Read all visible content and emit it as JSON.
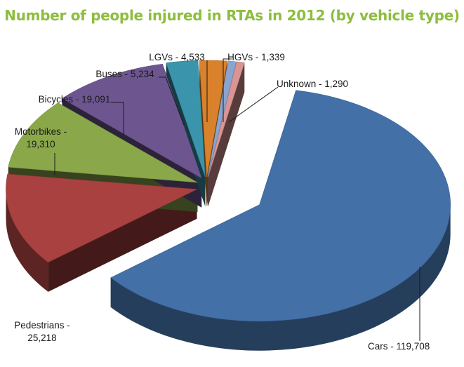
{
  "chart_data": {
    "type": "pie",
    "title": "Number of people injured in RTAs in 2012 (by vehicle type)",
    "slices": [
      {
        "name": "Cars",
        "value": 119708,
        "label_lines": [
          "Cars - 119,708"
        ],
        "color": "#4470a8"
      },
      {
        "name": "Pedestrians",
        "value": 25218,
        "label_lines": [
          "Pedestrians -",
          "25,218"
        ],
        "color": "#a8413f"
      },
      {
        "name": "Motorbikes",
        "value": 19310,
        "label_lines": [
          "Motorbikes -",
          "19,310"
        ],
        "color": "#8aa84a"
      },
      {
        "name": "Bicycles",
        "value": 19091,
        "label_lines": [
          "Bicycles - 19,091"
        ],
        "color": "#6d5690"
      },
      {
        "name": "Buses",
        "value": 5234,
        "label_lines": [
          "Buses - 5,234"
        ],
        "color": "#3a94ab"
      },
      {
        "name": "LGVs",
        "value": 4533,
        "label_lines": [
          "LGVs - 4,533"
        ],
        "color": "#d9822b"
      },
      {
        "name": "HGVs",
        "value": 1339,
        "label_lines": [
          "HGVs - 1,339"
        ],
        "color": "#8aa4cf"
      },
      {
        "name": "Unknown",
        "value": 1290,
        "label_lines": [
          "Unknown - 1,290"
        ],
        "color": "#d99593"
      }
    ]
  }
}
